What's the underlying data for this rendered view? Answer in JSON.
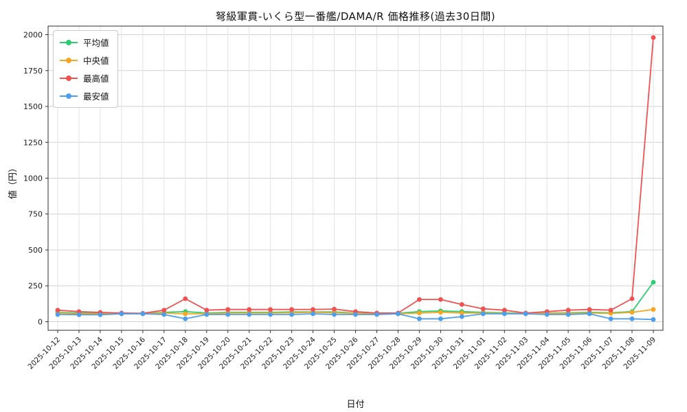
{
  "chart_data": {
    "type": "line",
    "title": "弩級軍貫-いくら型一番艦/DAMA/R 価格推移(過去30日間)",
    "xlabel": "日付",
    "ylabel": "値（円）",
    "x": [
      "2025-10-12",
      "2025-10-13",
      "2025-10-14",
      "2025-10-15",
      "2025-10-16",
      "2025-10-17",
      "2025-10-18",
      "2025-10-19",
      "2025-10-20",
      "2025-10-21",
      "2025-10-22",
      "2025-10-23",
      "2025-10-24",
      "2025-10-25",
      "2025-10-26",
      "2025-10-27",
      "2025-10-28",
      "2025-10-29",
      "2025-10-30",
      "2025-10-31",
      "2025-11-01",
      "2025-11-02",
      "2025-11-03",
      "2025-11-04",
      "2025-11-05",
      "2025-11-06",
      "2025-11-07",
      "2025-11-08",
      "2025-11-09"
    ],
    "series": [
      {
        "name": "平均値",
        "color": "#2ecc71",
        "values": [
          65,
          60,
          58,
          57,
          56,
          65,
          70,
          60,
          65,
          65,
          65,
          68,
          68,
          68,
          60,
          55,
          58,
          70,
          75,
          70,
          65,
          62,
          57,
          60,
          62,
          65,
          62,
          70,
          275
        ]
      },
      {
        "name": "中央値",
        "color": "#f5a623",
        "values": [
          60,
          55,
          55,
          55,
          55,
          60,
          55,
          55,
          60,
          60,
          60,
          62,
          65,
          62,
          58,
          52,
          55,
          60,
          65,
          60,
          60,
          58,
          55,
          58,
          58,
          60,
          58,
          65,
          85
        ]
      },
      {
        "name": "最高値",
        "color": "#f05252",
        "values": [
          80,
          70,
          65,
          60,
          58,
          80,
          160,
          80,
          85,
          85,
          85,
          85,
          85,
          88,
          70,
          60,
          60,
          155,
          155,
          120,
          90,
          80,
          60,
          70,
          80,
          85,
          80,
          160,
          1980
        ]
      },
      {
        "name": "最安値",
        "color": "#4d9fec",
        "values": [
          50,
          48,
          48,
          55,
          55,
          50,
          20,
          50,
          50,
          50,
          50,
          50,
          55,
          50,
          50,
          50,
          55,
          20,
          20,
          35,
          55,
          55,
          55,
          50,
          50,
          55,
          20,
          20,
          15
        ]
      }
    ],
    "ylim": [
      -60,
      2060
    ],
    "yticks": [
      0,
      250,
      500,
      750,
      1000,
      1250,
      1500,
      1750,
      2000
    ],
    "grid": true,
    "legend_position": "upper-left"
  }
}
